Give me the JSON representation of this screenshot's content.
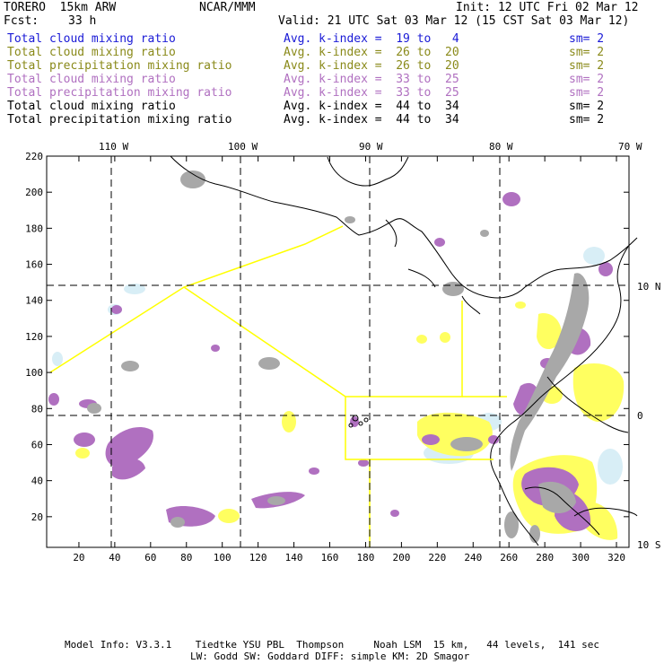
{
  "header": {
    "model": "TORERO  15km ARW",
    "center": "NCAR/MMM",
    "init": "Init: 12 UTC Fri 02 Mar 12",
    "fcst_label": "Fcst:",
    "fcst_value": "33 h",
    "valid": "Valid: 21 UTC Sat 03 Mar 12 (15 CST Sat 03 Mar 12)"
  },
  "legend": [
    {
      "field": "Total cloud mixing ratio",
      "kindex": "Avg. k-index =  19 to   4",
      "sm": "sm= 2",
      "color": "#1a1ad6"
    },
    {
      "field": "Total cloud mixing ratio",
      "kindex": "Avg. k-index =  26 to  20",
      "sm": "sm= 2",
      "color": "#8a8a1a"
    },
    {
      "field": "Total precipitation mixing ratio",
      "kindex": "Avg. k-index =  26 to  20",
      "sm": "sm= 2",
      "color": "#8a8a1a"
    },
    {
      "field": "Total cloud mixing ratio",
      "kindex": "Avg. k-index =  33 to  25",
      "sm": "sm= 2",
      "color": "#b070c0"
    },
    {
      "field": "Total precipitation mixing ratio",
      "kindex": "Avg. k-index =  33 to  25",
      "sm": "sm= 2",
      "color": "#b070c0"
    },
    {
      "field": "Total cloud mixing ratio",
      "kindex": "Avg. k-index =  44 to  34",
      "sm": "sm= 2",
      "color": "#000000"
    },
    {
      "field": "Total precipitation mixing ratio",
      "kindex": "Avg. k-index =  44 to  34",
      "sm": "sm= 2",
      "color": "#000000"
    }
  ],
  "map": {
    "top_labels": [
      "110 W",
      "100 W",
      "90 W",
      "80 W",
      "70 W"
    ],
    "right_labels": [
      "10 N",
      "0",
      "10 S"
    ],
    "y_ticks": [
      "220",
      "200",
      "180",
      "160",
      "140",
      "120",
      "100",
      "80",
      "60",
      "40",
      "20"
    ],
    "x_ticks": [
      "20",
      "40",
      "60",
      "80",
      "100",
      "120",
      "140",
      "160",
      "180",
      "200",
      "220",
      "240",
      "260",
      "280",
      "300",
      "320"
    ],
    "colors": {
      "gray": "#a8a8a8",
      "purple": "#b070c0",
      "yellow": "#ffff60",
      "lightblue": "#d8eef6",
      "boundary": "#ffff00"
    }
  },
  "footer": {
    "line1": "Model Info: V3.3.1    Tiedtke YSU PBL  Thompson     Noah LSM  15 km,   44 levels,  141 sec",
    "line2": "LW: Godd SW: Goddard DIFF: simple KM: 2D Smagor"
  }
}
